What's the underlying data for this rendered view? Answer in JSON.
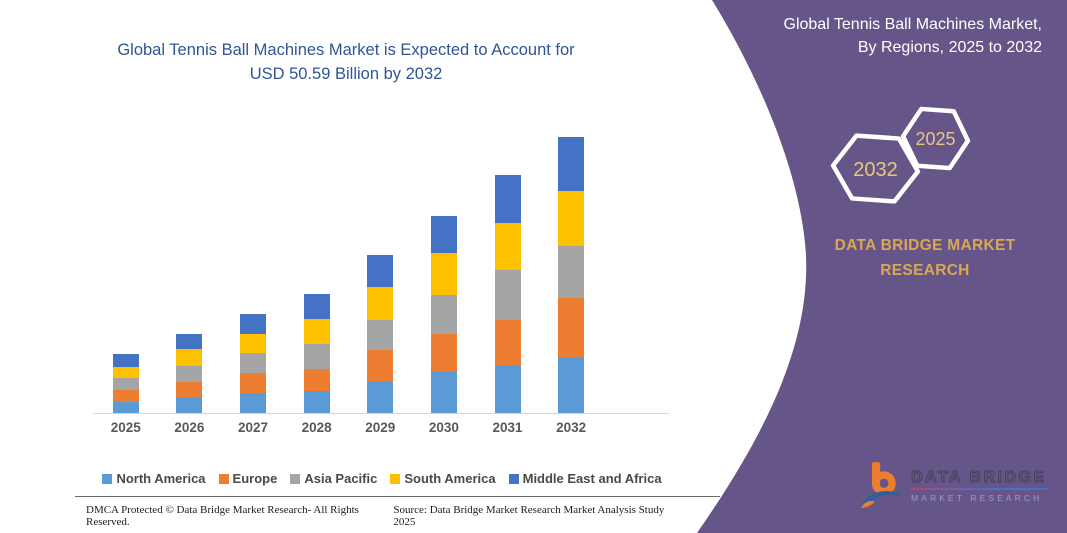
{
  "main": {
    "title_line1": "Global Tennis Ball Machines Market is Expected to Account for",
    "title_line2": "USD 50.59 Billion by 2032"
  },
  "chart_data": {
    "type": "bar",
    "stacked": true,
    "title": "Global Tennis Ball Machines Market, By Regions, 2025 to 2032",
    "unit": "USD Billion",
    "categories": [
      "2025",
      "2026",
      "2027",
      "2028",
      "2029",
      "2030",
      "2031",
      "2032"
    ],
    "series": [
      {
        "name": "North America",
        "color": "#5B9BD5",
        "values": [
          2.0,
          2.9,
          3.6,
          4.0,
          5.8,
          7.5,
          8.7,
          10.2
        ]
      },
      {
        "name": "Europe",
        "color": "#ED7D31",
        "values": [
          2.2,
          2.8,
          3.7,
          4.0,
          5.8,
          7.0,
          8.4,
          10.9
        ]
      },
      {
        "name": "Asia Pacific",
        "color": "#A5A5A5",
        "values": [
          2.2,
          2.9,
          3.7,
          4.6,
          5.5,
          7.2,
          9.0,
          9.5
        ]
      },
      {
        "name": "South America",
        "color": "#FFC000",
        "values": [
          2.1,
          3.2,
          3.4,
          4.7,
          5.9,
          7.6,
          8.6,
          10.0
        ]
      },
      {
        "name": "Middle East and Africa",
        "color": "#4472C4",
        "values": [
          2.3,
          2.6,
          3.7,
          4.6,
          6.0,
          6.7,
          8.9,
          9.99
        ]
      }
    ],
    "totals": [
      10.8,
      14.4,
      18.1,
      21.9,
      29.0,
      36.0,
      43.6,
      50.59
    ],
    "ylim": [
      0,
      52
    ],
    "grid": false,
    "axis_labels_visible": "x-only",
    "legend_position": "bottom"
  },
  "sidebar": {
    "bg_color": "#665588",
    "heading_line1": "Global Tennis Ball Machines Market,",
    "heading_line2": "By Regions, 2025 to 2032",
    "hexagon_back_label": "2032",
    "hexagon_front_label": "2025",
    "brand_line1": "DATA BRIDGE MARKET",
    "brand_line2": "RESEARCH",
    "accent_gold": "#D8A854",
    "logo": {
      "line1": "DATA BRIDGE",
      "line2": "MARKET RESEARCH"
    }
  },
  "footer": {
    "dmca": "DMCA Protected © Data Bridge Market Research-  All Rights Reserved.",
    "source": "Source: Data Bridge Market Research  Market Analysis Study 2025"
  }
}
